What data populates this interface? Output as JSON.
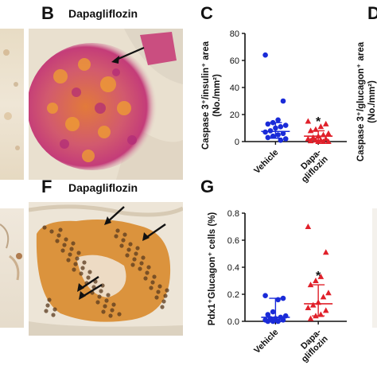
{
  "panels": {
    "B": {
      "letter": "B",
      "title": "Dapagliflozin"
    },
    "C": {
      "letter": "C"
    },
    "D": {
      "letter": "D"
    },
    "F": {
      "letter": "F",
      "title": "Dapagliflozin"
    },
    "G": {
      "letter": "G"
    }
  },
  "chart_data": [
    {
      "type": "scatter",
      "panel": "C",
      "ylabel": "Caspase 3⁺/insulin⁺ area (No./mm²)",
      "ylim": [
        0,
        80
      ],
      "yticks": [
        "0",
        "20",
        "40",
        "60",
        "80"
      ],
      "categories": [
        "Vehicle",
        "Dapa-gliflozin"
      ],
      "annotation": "*",
      "colors": {
        "Vehicle": "#1a2bd8",
        "Dapa-gliflozin": "#e0202a"
      },
      "series": [
        {
          "group": "Vehicle",
          "marker": "circle",
          "mean": 7.5,
          "sd_upper": 14,
          "sd_lower": 2.5,
          "values": [
            64,
            30,
            16,
            14,
            13,
            12,
            11,
            10,
            8,
            7,
            6,
            5,
            4,
            3,
            2,
            1
          ]
        },
        {
          "group": "Dapa-gliflozin",
          "marker": "triangle",
          "mean": 4,
          "sd_upper": 8,
          "sd_lower": 1,
          "values": [
            15,
            13,
            11,
            9,
            8,
            6,
            5,
            4,
            3,
            2,
            2,
            1,
            1,
            0.5,
            0,
            0,
            0
          ]
        }
      ]
    },
    {
      "type": "scatter",
      "panel": "D",
      "ylabel": "Caspase 3⁺/glucagon⁺ area (No./mm²)"
    },
    {
      "type": "scatter",
      "panel": "G",
      "ylabel": "Pdx1⁺Glucagon⁺ cells (%)",
      "ylim": [
        0,
        0.8
      ],
      "yticks": [
        "0.0",
        "0.2",
        "0.4",
        "0.6",
        "0.8"
      ],
      "categories": [
        "Vehicle",
        "Dapa-gliflozin"
      ],
      "annotation": "*",
      "colors": {
        "Vehicle": "#1a2bd8",
        "Dapa-gliflozin": "#e0202a"
      },
      "series": [
        {
          "group": "Vehicle",
          "marker": "circle",
          "mean": 0.03,
          "sd_upper": 0.17,
          "sd_lower": 0.0,
          "values": [
            0.19,
            0.17,
            0.16,
            0.07,
            0.05,
            0.04,
            0.03,
            0.02,
            0.02,
            0.01,
            0.01,
            0.0,
            0.0,
            0.0
          ]
        },
        {
          "group": "Dapa-gliflozin",
          "marker": "triangle",
          "mean": 0.13,
          "sd_upper": 0.27,
          "sd_lower": 0.04,
          "values": [
            0.7,
            0.51,
            0.33,
            0.3,
            0.27,
            0.21,
            0.18,
            0.14,
            0.12,
            0.1,
            0.08,
            0.05,
            0.04,
            0.02
          ]
        }
      ]
    }
  ]
}
